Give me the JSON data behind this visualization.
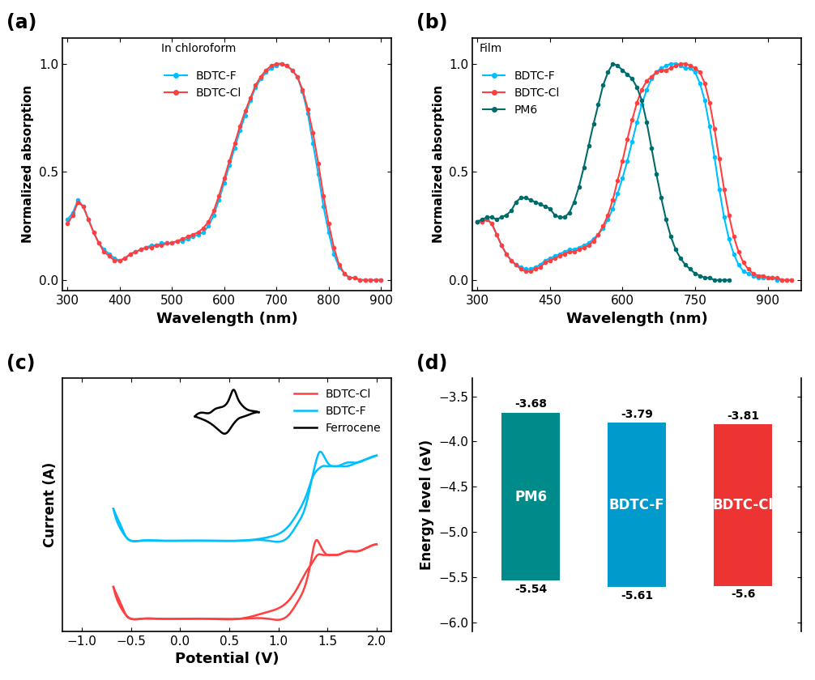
{
  "panel_a": {
    "title": "In chloroform",
    "xlabel": "Wavelength (nm)",
    "ylabel": "Normalized absorption",
    "xlim": [
      290,
      920
    ],
    "ylim": [
      -0.05,
      1.12
    ],
    "xticks": [
      300,
      400,
      500,
      600,
      700,
      800,
      900
    ],
    "yticks": [
      0.0,
      0.5,
      1.0
    ],
    "bdtc_f_x": [
      300,
      310,
      320,
      330,
      340,
      350,
      360,
      370,
      380,
      390,
      400,
      410,
      420,
      430,
      440,
      450,
      460,
      470,
      480,
      490,
      500,
      510,
      520,
      530,
      540,
      550,
      560,
      570,
      580,
      590,
      600,
      610,
      620,
      630,
      640,
      650,
      660,
      670,
      680,
      690,
      700,
      710,
      720,
      730,
      740,
      750,
      760,
      770,
      780,
      790,
      800,
      810,
      820,
      830,
      840,
      850,
      860,
      870,
      880,
      890,
      900
    ],
    "bdtc_f_y": [
      0.28,
      0.31,
      0.37,
      0.34,
      0.28,
      0.22,
      0.17,
      0.14,
      0.12,
      0.1,
      0.09,
      0.1,
      0.12,
      0.13,
      0.14,
      0.15,
      0.16,
      0.16,
      0.17,
      0.17,
      0.17,
      0.18,
      0.18,
      0.19,
      0.2,
      0.21,
      0.22,
      0.25,
      0.3,
      0.37,
      0.45,
      0.53,
      0.61,
      0.69,
      0.76,
      0.83,
      0.89,
      0.93,
      0.96,
      0.98,
      0.99,
      1.0,
      0.99,
      0.97,
      0.94,
      0.87,
      0.77,
      0.63,
      0.49,
      0.34,
      0.22,
      0.12,
      0.06,
      0.03,
      0.01,
      0.01,
      0.0,
      0.0,
      0.0,
      0.0,
      0.0
    ],
    "bdtc_cl_x": [
      300,
      310,
      320,
      330,
      340,
      350,
      360,
      370,
      380,
      390,
      400,
      410,
      420,
      430,
      440,
      450,
      460,
      470,
      480,
      490,
      500,
      510,
      520,
      530,
      540,
      550,
      560,
      570,
      580,
      590,
      600,
      610,
      620,
      630,
      640,
      650,
      660,
      670,
      680,
      690,
      700,
      710,
      720,
      730,
      740,
      750,
      760,
      770,
      780,
      790,
      800,
      810,
      820,
      830,
      840,
      850,
      860,
      870,
      880,
      890,
      900
    ],
    "bdtc_cl_y": [
      0.26,
      0.3,
      0.36,
      0.34,
      0.28,
      0.22,
      0.17,
      0.13,
      0.11,
      0.09,
      0.09,
      0.1,
      0.12,
      0.13,
      0.14,
      0.15,
      0.15,
      0.16,
      0.16,
      0.17,
      0.17,
      0.18,
      0.19,
      0.2,
      0.21,
      0.22,
      0.24,
      0.27,
      0.32,
      0.39,
      0.47,
      0.55,
      0.63,
      0.71,
      0.78,
      0.84,
      0.9,
      0.94,
      0.97,
      0.99,
      1.0,
      1.0,
      0.99,
      0.97,
      0.94,
      0.88,
      0.79,
      0.68,
      0.54,
      0.39,
      0.26,
      0.15,
      0.07,
      0.03,
      0.01,
      0.01,
      0.0,
      0.0,
      0.0,
      0.0,
      0.0
    ],
    "color_f": "#00BFFF",
    "color_cl": "#FF4040"
  },
  "panel_b": {
    "title": "Film",
    "xlabel": "Wavelength (nm)",
    "ylabel": "Normalized absorption",
    "xlim": [
      290,
      970
    ],
    "ylim": [
      -0.05,
      1.12
    ],
    "xticks": [
      300,
      450,
      600,
      750,
      900
    ],
    "yticks": [
      0.0,
      0.5,
      1.0
    ],
    "bdtc_f_x": [
      300,
      310,
      320,
      330,
      340,
      350,
      360,
      370,
      380,
      390,
      400,
      410,
      420,
      430,
      440,
      450,
      460,
      470,
      480,
      490,
      500,
      510,
      520,
      530,
      540,
      550,
      560,
      570,
      580,
      590,
      600,
      610,
      620,
      630,
      640,
      650,
      660,
      670,
      680,
      690,
      700,
      710,
      720,
      730,
      740,
      750,
      760,
      770,
      780,
      790,
      800,
      810,
      820,
      830,
      840,
      850,
      860,
      870,
      880,
      890,
      900,
      910,
      920,
      930,
      940,
      950
    ],
    "bdtc_f_y": [
      0.27,
      0.27,
      0.28,
      0.26,
      0.21,
      0.16,
      0.12,
      0.09,
      0.07,
      0.06,
      0.05,
      0.05,
      0.06,
      0.07,
      0.09,
      0.1,
      0.11,
      0.12,
      0.13,
      0.14,
      0.14,
      0.15,
      0.16,
      0.17,
      0.19,
      0.21,
      0.24,
      0.28,
      0.33,
      0.4,
      0.47,
      0.55,
      0.64,
      0.73,
      0.81,
      0.88,
      0.93,
      0.96,
      0.98,
      0.99,
      1.0,
      1.0,
      0.99,
      0.98,
      0.98,
      0.96,
      0.91,
      0.83,
      0.71,
      0.57,
      0.42,
      0.29,
      0.19,
      0.12,
      0.07,
      0.04,
      0.03,
      0.02,
      0.01,
      0.01,
      0.01,
      0.01,
      0.0,
      0.0,
      0.0,
      0.0
    ],
    "bdtc_cl_x": [
      300,
      310,
      320,
      330,
      340,
      350,
      360,
      370,
      380,
      390,
      400,
      410,
      420,
      430,
      440,
      450,
      460,
      470,
      480,
      490,
      500,
      510,
      520,
      530,
      540,
      550,
      560,
      570,
      580,
      590,
      600,
      610,
      620,
      630,
      640,
      650,
      660,
      670,
      680,
      690,
      700,
      710,
      720,
      730,
      740,
      750,
      760,
      770,
      780,
      790,
      800,
      810,
      820,
      830,
      840,
      850,
      860,
      870,
      880,
      890,
      900,
      910,
      920,
      930,
      940,
      950
    ],
    "bdtc_cl_y": [
      0.27,
      0.27,
      0.28,
      0.26,
      0.21,
      0.16,
      0.12,
      0.09,
      0.07,
      0.05,
      0.04,
      0.04,
      0.05,
      0.06,
      0.08,
      0.09,
      0.1,
      0.11,
      0.12,
      0.13,
      0.13,
      0.14,
      0.15,
      0.16,
      0.18,
      0.21,
      0.25,
      0.3,
      0.37,
      0.46,
      0.55,
      0.65,
      0.74,
      0.82,
      0.88,
      0.92,
      0.94,
      0.96,
      0.97,
      0.97,
      0.98,
      0.99,
      1.0,
      1.0,
      0.99,
      0.98,
      0.96,
      0.91,
      0.82,
      0.7,
      0.56,
      0.42,
      0.3,
      0.2,
      0.13,
      0.08,
      0.05,
      0.03,
      0.02,
      0.02,
      0.01,
      0.01,
      0.01,
      0.0,
      0.0,
      0.0
    ],
    "pm6_x": [
      300,
      310,
      320,
      330,
      340,
      350,
      360,
      370,
      380,
      390,
      400,
      410,
      420,
      430,
      440,
      450,
      460,
      470,
      480,
      490,
      500,
      510,
      520,
      530,
      540,
      550,
      560,
      570,
      580,
      590,
      600,
      610,
      620,
      630,
      640,
      650,
      660,
      670,
      680,
      690,
      700,
      710,
      720,
      730,
      740,
      750,
      760,
      770,
      780,
      790,
      800,
      810,
      820
    ],
    "pm6_y": [
      0.27,
      0.28,
      0.29,
      0.29,
      0.28,
      0.29,
      0.3,
      0.32,
      0.36,
      0.38,
      0.38,
      0.37,
      0.36,
      0.35,
      0.34,
      0.33,
      0.3,
      0.29,
      0.29,
      0.31,
      0.36,
      0.43,
      0.52,
      0.62,
      0.72,
      0.81,
      0.9,
      0.96,
      1.0,
      0.99,
      0.97,
      0.95,
      0.93,
      0.89,
      0.83,
      0.73,
      0.61,
      0.49,
      0.38,
      0.28,
      0.2,
      0.14,
      0.1,
      0.07,
      0.05,
      0.03,
      0.02,
      0.01,
      0.01,
      0.0,
      0.0,
      0.0,
      0.0
    ],
    "color_f": "#00BFFF",
    "color_cl": "#FF4040",
    "color_pm6": "#006B6B"
  },
  "panel_c": {
    "xlabel": "Potential (V)",
    "ylabel": "Current (A)",
    "xlim": [
      -1.2,
      2.15
    ],
    "xticks": [
      -1.0,
      -0.5,
      0.0,
      0.5,
      1.0,
      1.5,
      2.0
    ],
    "color_cl": "#FF4040",
    "color_f": "#00BFFF",
    "color_ferrocene": "#000000"
  },
  "panel_d": {
    "ylabel": "Energy level (eV)",
    "ylim": [
      -6.1,
      -3.3
    ],
    "yticks": [
      -3.5,
      -4.0,
      -4.5,
      -5.0,
      -5.5,
      -6.0
    ],
    "bars": [
      {
        "label": "PM6",
        "lumo": -3.68,
        "homo": -5.54,
        "color": "#008B8B"
      },
      {
        "label": "BDTC-F",
        "lumo": -3.79,
        "homo": -5.61,
        "color": "#009ACD"
      },
      {
        "label": "BDTC-Cl",
        "lumo": -3.81,
        "homo": -5.6,
        "color": "#EE3333"
      }
    ]
  }
}
